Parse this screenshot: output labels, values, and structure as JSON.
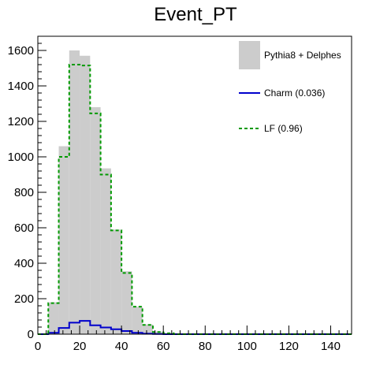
{
  "chart_data": {
    "type": "histogram",
    "title": "Event_PT",
    "xlabel": "",
    "ylabel": "",
    "xlim": [
      0,
      150
    ],
    "ylim": [
      0,
      1680
    ],
    "x_ticks": [
      0,
      20,
      40,
      60,
      80,
      100,
      120,
      140
    ],
    "y_ticks": [
      0,
      200,
      400,
      600,
      800,
      1000,
      1200,
      1400,
      1600
    ],
    "bin_edges": [
      0,
      5,
      10,
      15,
      20,
      25,
      30,
      35,
      40,
      45,
      50,
      55,
      60,
      65,
      70,
      75,
      80,
      85,
      90,
      95,
      100,
      105,
      110,
      115,
      120,
      125,
      130,
      135,
      140,
      145,
      150
    ],
    "series": [
      {
        "name": "Pythia8 + Delphes",
        "style": "filled",
        "color": "#cccccc",
        "values": [
          0,
          180,
          1060,
          1600,
          1570,
          1280,
          935,
          590,
          355,
          155,
          55,
          15,
          5,
          0,
          0,
          0,
          0,
          0,
          0,
          0,
          0,
          0,
          0,
          0,
          0,
          0,
          0,
          0,
          0,
          0
        ]
      },
      {
        "name": "Charm (0.036)",
        "style": "solid",
        "color": "#0000cc",
        "values": [
          0,
          8,
          35,
          65,
          75,
          50,
          38,
          28,
          18,
          8,
          3,
          1,
          0,
          0,
          0,
          0,
          0,
          0,
          0,
          0,
          0,
          0,
          0,
          0,
          0,
          0,
          0,
          0,
          0,
          0
        ]
      },
      {
        "name": "LF (0.96)",
        "style": "dashed",
        "color": "#009900",
        "values": [
          0,
          175,
          1000,
          1520,
          1515,
          1245,
          900,
          585,
          345,
          155,
          52,
          12,
          5,
          0,
          0,
          0,
          0,
          0,
          0,
          0,
          0,
          0,
          0,
          0,
          0,
          0,
          0,
          0,
          0,
          0
        ]
      }
    ],
    "legend_position": "top-right",
    "grid": false
  }
}
